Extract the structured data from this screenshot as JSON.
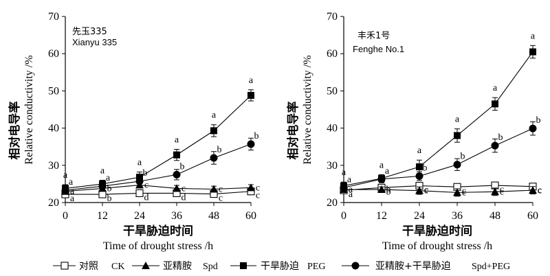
{
  "chart_data": [
    {
      "type": "line",
      "variety_cn": "先玉335",
      "variety_en": "Xianyu 335",
      "ylabel_cn": "相对电导率",
      "ylabel_en": "Relative conductivity /%",
      "xlabel_cn": "干旱胁迫时间",
      "xlabel_en": "Time of drought stress /h",
      "x": [
        0,
        12,
        24,
        36,
        48,
        60
      ],
      "xticks": [
        "0",
        "12",
        "24",
        "36",
        "48",
        "60"
      ],
      "ylim": [
        20,
        70
      ],
      "yticks": [
        "20",
        "30",
        "40",
        "50",
        "60",
        "70"
      ],
      "series": [
        {
          "key": "ck",
          "values": [
            22.2,
            22.2,
            22.5,
            22.5,
            22.3,
            23.0
          ],
          "err": [
            0.8,
            0.8,
            0.8,
            0.8,
            0.8,
            0.9
          ],
          "letters": [
            "a",
            "b",
            "d",
            "d",
            "c",
            "c"
          ]
        },
        {
          "key": "spd",
          "values": [
            23.0,
            23.8,
            24.7,
            23.8,
            23.6,
            24.0
          ],
          "err": [
            0.7,
            0.7,
            0.7,
            0.8,
            0.8,
            0.8
          ],
          "letters": [
            "a",
            "b",
            "c",
            "c",
            "c",
            "c"
          ]
        },
        {
          "key": "peg",
          "values": [
            23.8,
            25.0,
            26.8,
            32.8,
            39.3,
            48.8
          ],
          "err": [
            1.0,
            1.0,
            1.4,
            1.5,
            1.6,
            1.5
          ],
          "letters": [
            "a",
            "a",
            "a",
            "a",
            "a",
            "a"
          ]
        },
        {
          "key": "both",
          "values": [
            23.3,
            24.4,
            25.7,
            27.5,
            32.0,
            35.7
          ],
          "err": [
            1.0,
            1.0,
            1.2,
            1.4,
            1.7,
            1.6
          ],
          "letters": [
            "a",
            "a",
            "b",
            "b",
            "b",
            "b"
          ]
        }
      ]
    },
    {
      "type": "line",
      "variety_cn": "丰禾1号",
      "variety_en": "Fenghe No.1",
      "ylabel_cn": "相对电导率",
      "ylabel_en": "Relative conductivity /%",
      "xlabel_cn": "干旱胁迫时间",
      "xlabel_en": "Time of drought stress /h",
      "x": [
        0,
        12,
        24,
        36,
        48,
        60
      ],
      "xticks": [
        "0",
        "12",
        "24",
        "36",
        "48",
        "60"
      ],
      "ylim": [
        20,
        70
      ],
      "yticks": [
        "20",
        "30",
        "40",
        "50",
        "60",
        "70"
      ],
      "series": [
        {
          "key": "ck",
          "values": [
            23.3,
            24.0,
            24.5,
            24.2,
            24.6,
            24.3
          ],
          "err": [
            0.8,
            0.8,
            0.8,
            0.8,
            0.8,
            0.8
          ],
          "letters": [
            "a",
            "b",
            "c",
            "c",
            "c",
            "c"
          ]
        },
        {
          "key": "spd",
          "values": [
            23.5,
            23.5,
            23.2,
            22.7,
            22.9,
            23.3
          ],
          "err": [
            0.7,
            0.7,
            1.0,
            1.0,
            1.0,
            1.0
          ],
          "letters": [
            "a",
            "b",
            "c",
            "c",
            "c",
            "c"
          ]
        },
        {
          "key": "peg",
          "values": [
            24.5,
            26.5,
            29.6,
            38.0,
            46.5,
            60.5
          ],
          "err": [
            1.0,
            1.0,
            1.8,
            1.8,
            1.7,
            1.7
          ],
          "letters": [
            "a",
            "a",
            "a",
            "a",
            "a",
            "a"
          ]
        },
        {
          "key": "both",
          "values": [
            24.0,
            26.3,
            27.1,
            30.2,
            35.3,
            39.9
          ],
          "err": [
            1.0,
            1.0,
            1.2,
            1.6,
            1.8,
            1.8
          ],
          "letters": [
            "a",
            "a",
            "b",
            "b",
            "b",
            "b"
          ]
        }
      ]
    }
  ],
  "legend": [
    {
      "key": "ck",
      "label_cn": "对照",
      "label_en": "CK"
    },
    {
      "key": "spd",
      "label_cn": "亚精胺",
      "label_en": "Spd"
    },
    {
      "key": "peg",
      "label_cn": "干旱胁迫",
      "label_en": "PEG"
    },
    {
      "key": "both",
      "label_cn": "亚精胺+干旱胁迫",
      "label_en": "Spd+PEG"
    }
  ]
}
